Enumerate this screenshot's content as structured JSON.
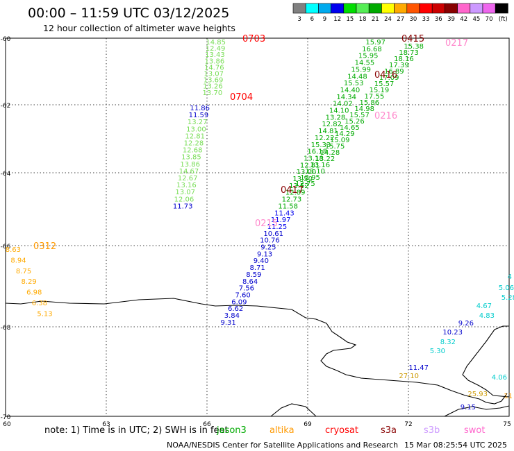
{
  "header": {
    "title": "00:00 – 11:59 UTC 03/12/2025",
    "subtitle": "12 hour collection of altimeter wave heights"
  },
  "colorbar": {
    "colors": [
      "#808080",
      "#00ffff",
      "#00aaee",
      "#0000ee",
      "#00dd00",
      "#55ee55",
      "#00aa00",
      "#ffff00",
      "#ffaa00",
      "#ff5500",
      "#ff0000",
      "#cc0000",
      "#880000",
      "#ff66cc",
      "#cc99ff",
      "#ee66ee",
      "#000000"
    ],
    "labels": [
      "3",
      "6",
      "9",
      "12",
      "15",
      "18",
      "21",
      "24",
      "27",
      "30",
      "33",
      "36",
      "39",
      "42",
      "45",
      "70",
      "(ft)"
    ]
  },
  "axes": {
    "lon_ticks": [
      "60",
      "63",
      "66",
      "69",
      "72",
      "75"
    ],
    "lat_ticks": [
      "-60",
      "-62",
      "-64",
      "-66",
      "-68",
      "-70"
    ]
  },
  "tracks": [
    {
      "id": "t0703",
      "color": "#77dd55",
      "label": "0703",
      "label_color": "#ff0000",
      "values": [
        "14.85",
        "12.49",
        "13.43",
        "13.86",
        "14.76",
        "13.07",
        "13.69",
        "13.26",
        "13.70"
      ]
    },
    {
      "id": "t0704",
      "color": "#77dd55",
      "label": "0704",
      "label_color": "#ff0000",
      "values": [
        "11.86",
        "11.59",
        "13.27",
        "13.00",
        "12.81",
        "12.28",
        "12.68",
        "13.85",
        "13.86",
        "14.67",
        "12.67",
        "13.16",
        "13.07",
        "12.06",
        "11.73"
      ]
    },
    {
      "id": "t0415",
      "color": "#00aa00",
      "label": "0415",
      "label_color": "#880000",
      "values": [
        "15.97",
        "16.68",
        "15.95",
        "14.55",
        "15.99",
        "14.48",
        "15.53",
        "14.40",
        "14.34",
        "14.02",
        "14.10",
        "13.28",
        "12.82",
        "14.81",
        "12.22",
        "15.33",
        "16.18",
        "13.18",
        "12.81",
        "13.00",
        "13.50",
        "13.52",
        "12.89",
        "12.73",
        "11.58",
        "11.43",
        "11.97",
        "11.25",
        "10.61",
        "10.76",
        "9.25",
        "9.13",
        "9.40",
        "8.71",
        "8.59",
        "8.64",
        "7.56",
        "7.60",
        "6.09",
        "6.62",
        "3.84",
        "9.31"
      ]
    },
    {
      "id": "t0416",
      "color": "#00aa00",
      "label": "0416",
      "label_color": "#880000",
      "values": [
        "15.38",
        "18.73",
        "18.16",
        "17.39",
        "16.89",
        "17.09",
        "15.57",
        "15.19",
        "17.55",
        "15.86",
        "14.98",
        "15.57",
        "15.26",
        "14.65",
        "14.29",
        "15.09",
        "15.75",
        "14.28",
        "13.22",
        "13.16",
        "13.10",
        "12.95",
        "12.75"
      ]
    },
    {
      "id": "t0217",
      "color": "#ff88cc",
      "label": "0217",
      "label_color": "#ff88cc",
      "values": []
    },
    {
      "id": "t0216",
      "color": "#ff88cc",
      "label": "0216",
      "label_color": "#ff88cc",
      "values": []
    },
    {
      "id": "t0417",
      "color": "#880000",
      "label": "0417",
      "label_color": "#880000",
      "values": []
    },
    {
      "id": "t0215",
      "color": "#ff88cc",
      "label": "0215",
      "label_color": "#ff88cc",
      "values": []
    },
    {
      "id": "t0312",
      "color": "#ffaa00",
      "label": "0312",
      "label_color": "#ff9900",
      "values": [
        "8.63",
        "8.94",
        "8.75",
        "8.29",
        "6.98",
        "6.38",
        "5.13"
      ]
    },
    {
      "id": "teast",
      "color": "#00cccc",
      "label": "",
      "label_color": "#000000",
      "values": [
        "4",
        "5.06",
        "5.28",
        "4.67",
        "4.83",
        "9.26",
        "10.23",
        "8.32",
        "5.30",
        "11.47",
        "27.10",
        "4.06",
        "25.93",
        "11",
        "9.15"
      ]
    }
  ],
  "footer": {
    "note": "note:  1) Time is in UTC;  2) SWH is in feet",
    "sat_labels": [
      {
        "name": "jason3",
        "color": "#00aa00"
      },
      {
        "name": "altika",
        "color": "#ff9900"
      },
      {
        "name": "cryosat",
        "color": "#ff0000"
      },
      {
        "name": "s3a",
        "color": "#880000"
      },
      {
        "name": "s3b",
        "color": "#cc99ff"
      },
      {
        "name": "swot",
        "color": "#ff66cc"
      }
    ],
    "credit": "NOAA/NESDIS Center for Satellite Applications and Research",
    "timestamp": "15 Mar 08:25:54 UTC 2025"
  }
}
